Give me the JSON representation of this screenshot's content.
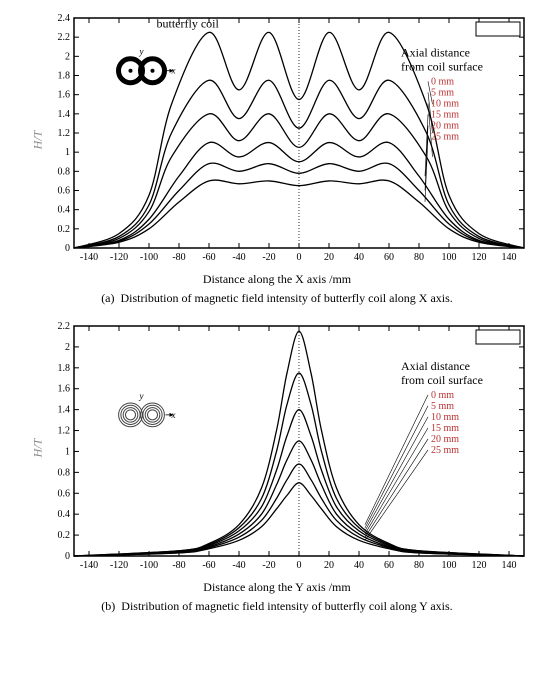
{
  "chart_a": {
    "type": "line",
    "title": "butterfly coil",
    "title_fontsize": 12,
    "xlabel": "Distance along the X axis /mm",
    "ylabel": "H/T",
    "xlim": [
      -150,
      150
    ],
    "ylim": [
      0,
      2.4
    ],
    "xticks": [
      -140,
      -120,
      -100,
      -80,
      -60,
      -40,
      -20,
      0,
      20,
      40,
      60,
      80,
      100,
      120,
      140
    ],
    "yticks": [
      0,
      0.2,
      0.4,
      0.6,
      0.8,
      1,
      1.2,
      1.4,
      1.6,
      1.8,
      2,
      2.2,
      2.4
    ],
    "border_color": "#000000",
    "background_color": "#ffffff",
    "tick_fontsize": 10,
    "line_color": "#000000",
    "line_width": 1.3,
    "legend_title1": "Axial distance",
    "legend_title2": "from coil surface",
    "legend_items": [
      "0 mm",
      "5 mm",
      "10 mm",
      "15 mm",
      "20 mm",
      "25 mm"
    ],
    "legend_color": "#bb3333",
    "series": [
      {
        "name": "0mm",
        "x": [
          -150,
          -120,
          -100,
          -85,
          -60,
          -40,
          -20,
          0,
          20,
          40,
          60,
          85,
          100,
          120,
          150
        ],
        "y": [
          0,
          0.15,
          0.55,
          1.5,
          2.25,
          1.65,
          2.25,
          1.55,
          2.25,
          1.65,
          2.25,
          1.5,
          0.55,
          0.15,
          0
        ]
      },
      {
        "name": "5mm",
        "x": [
          -150,
          -120,
          -100,
          -85,
          -60,
          -40,
          -20,
          0,
          20,
          40,
          60,
          85,
          100,
          120,
          150
        ],
        "y": [
          0,
          0.12,
          0.45,
          1.2,
          1.75,
          1.35,
          1.75,
          1.25,
          1.75,
          1.35,
          1.75,
          1.2,
          0.45,
          0.12,
          0
        ]
      },
      {
        "name": "10mm",
        "x": [
          -150,
          -120,
          -100,
          -85,
          -60,
          -40,
          -20,
          0,
          20,
          40,
          60,
          85,
          100,
          120,
          150
        ],
        "y": [
          0,
          0.1,
          0.38,
          0.95,
          1.4,
          1.12,
          1.4,
          1.05,
          1.4,
          1.12,
          1.4,
          0.95,
          0.38,
          0.1,
          0
        ]
      },
      {
        "name": "15mm",
        "x": [
          -150,
          -120,
          -100,
          -80,
          -60,
          -40,
          -20,
          0,
          20,
          40,
          60,
          80,
          100,
          120,
          150
        ],
        "y": [
          0,
          0.08,
          0.3,
          0.75,
          1.1,
          0.95,
          1.1,
          0.9,
          1.1,
          0.95,
          1.1,
          0.75,
          0.3,
          0.08,
          0
        ]
      },
      {
        "name": "20mm",
        "x": [
          -150,
          -120,
          -100,
          -80,
          -60,
          -40,
          -20,
          0,
          20,
          40,
          60,
          80,
          100,
          120,
          150
        ],
        "y": [
          0,
          0.07,
          0.25,
          0.6,
          0.88,
          0.8,
          0.88,
          0.78,
          0.88,
          0.8,
          0.88,
          0.6,
          0.25,
          0.07,
          0
        ]
      },
      {
        "name": "25mm",
        "x": [
          -150,
          -120,
          -100,
          -80,
          -60,
          -40,
          -20,
          0,
          20,
          40,
          60,
          80,
          100,
          120,
          150
        ],
        "y": [
          0,
          0.06,
          0.2,
          0.48,
          0.7,
          0.67,
          0.7,
          0.65,
          0.7,
          0.67,
          0.7,
          0.48,
          0.2,
          0.06,
          0
        ]
      }
    ],
    "caption_label": "(a)",
    "caption": "Distribution of magnetic field intensity of butterfly coil along X axis."
  },
  "chart_b": {
    "type": "line",
    "xlabel": "Distance along the Y axis  /mm",
    "ylabel": "H/T",
    "xlim": [
      -150,
      150
    ],
    "ylim": [
      0,
      2.2
    ],
    "xticks": [
      -140,
      -120,
      -100,
      -80,
      -60,
      -40,
      -20,
      0,
      20,
      40,
      60,
      80,
      100,
      120,
      140
    ],
    "yticks": [
      0,
      0.2,
      0.4,
      0.6,
      0.8,
      1,
      1.2,
      1.4,
      1.6,
      1.8,
      2,
      2.2
    ],
    "border_color": "#000000",
    "background_color": "#ffffff",
    "tick_fontsize": 10,
    "line_color": "#000000",
    "line_width": 1.3,
    "legend_title1": "Axial distance",
    "legend_title2": "from coil surface",
    "legend_items": [
      "0 mm",
      "5 mm",
      "10 mm",
      "15 mm",
      "20 mm",
      "25 mm"
    ],
    "legend_color": "#bb3333",
    "series": [
      {
        "name": "0mm",
        "x": [
          -150,
          -80,
          -60,
          -40,
          -25,
          -15,
          -8,
          0,
          8,
          15,
          25,
          40,
          60,
          80,
          150
        ],
        "y": [
          0,
          0.05,
          0.12,
          0.3,
          0.65,
          1.2,
          1.75,
          2.15,
          1.75,
          1.2,
          0.65,
          0.3,
          0.12,
          0.05,
          0
        ]
      },
      {
        "name": "5mm",
        "x": [
          -150,
          -80,
          -60,
          -40,
          -25,
          -15,
          -8,
          0,
          8,
          15,
          25,
          40,
          60,
          80,
          150
        ],
        "y": [
          0,
          0.05,
          0.11,
          0.27,
          0.55,
          1.0,
          1.45,
          1.75,
          1.45,
          1.0,
          0.55,
          0.27,
          0.11,
          0.05,
          0
        ]
      },
      {
        "name": "10mm",
        "x": [
          -150,
          -80,
          -60,
          -40,
          -25,
          -15,
          -8,
          0,
          8,
          15,
          25,
          40,
          60,
          80,
          150
        ],
        "y": [
          0,
          0.04,
          0.1,
          0.24,
          0.47,
          0.82,
          1.15,
          1.4,
          1.15,
          0.82,
          0.47,
          0.24,
          0.1,
          0.04,
          0
        ]
      },
      {
        "name": "15mm",
        "x": [
          -150,
          -80,
          -60,
          -40,
          -25,
          -15,
          -8,
          0,
          8,
          15,
          25,
          40,
          60,
          80,
          150
        ],
        "y": [
          0,
          0.04,
          0.09,
          0.21,
          0.4,
          0.68,
          0.92,
          1.1,
          0.92,
          0.68,
          0.4,
          0.21,
          0.09,
          0.04,
          0
        ]
      },
      {
        "name": "20mm",
        "x": [
          -150,
          -80,
          -60,
          -40,
          -25,
          -15,
          -8,
          0,
          8,
          15,
          25,
          40,
          60,
          80,
          150
        ],
        "y": [
          0,
          0.03,
          0.08,
          0.18,
          0.34,
          0.55,
          0.73,
          0.88,
          0.73,
          0.55,
          0.34,
          0.18,
          0.08,
          0.03,
          0
        ]
      },
      {
        "name": "25mm",
        "x": [
          -150,
          -80,
          -60,
          -40,
          -25,
          -15,
          -8,
          0,
          8,
          15,
          25,
          40,
          60,
          80,
          150
        ],
        "y": [
          0,
          0.03,
          0.07,
          0.15,
          0.28,
          0.45,
          0.58,
          0.7,
          0.58,
          0.45,
          0.28,
          0.15,
          0.07,
          0.03,
          0
        ]
      }
    ],
    "caption_label": "(b)",
    "caption": "Distribution of magnetic field intensity of butterfly coil along Y axis."
  }
}
